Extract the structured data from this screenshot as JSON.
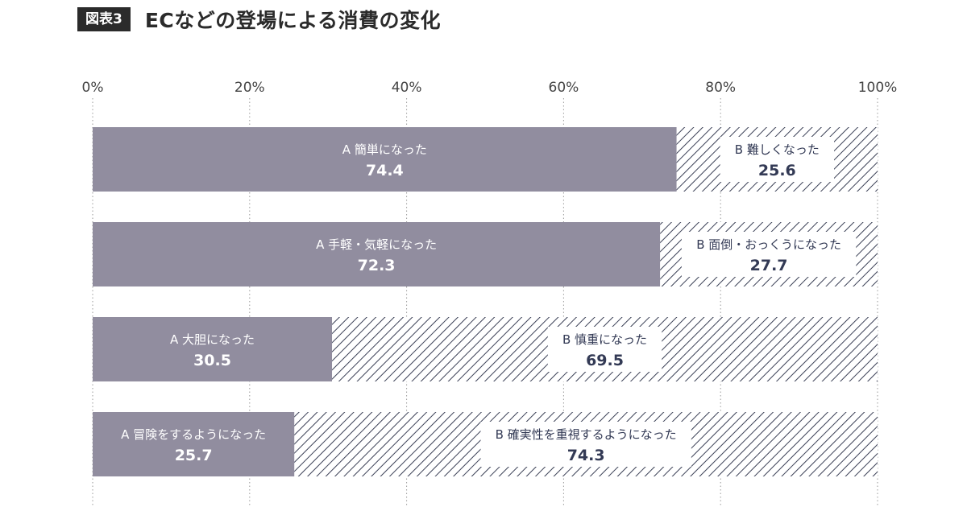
{
  "figure_label": "図表3",
  "title": "ECなどの登場による消費の変化",
  "colors": {
    "a_fill": "#918d9f",
    "b_hatch": "#3a3f55",
    "text_dark": "#333a55",
    "grid": "#9a9a9a"
  },
  "chart_data": {
    "type": "bar",
    "orientation": "horizontal",
    "stacked": true,
    "xlim": [
      0,
      100
    ],
    "xticks": [
      "0%",
      "20%",
      "40%",
      "60%",
      "80%",
      "100%"
    ],
    "grid": "dotted vertical",
    "rows": [
      {
        "a_label": "A 簡単になった",
        "a_value": 74.4,
        "b_label": "B 難しくなった",
        "b_value": 25.6
      },
      {
        "a_label": "A 手軽・気軽になった",
        "a_value": 72.3,
        "b_label": "B 面倒・おっくうになった",
        "b_value": 27.7
      },
      {
        "a_label": "A 大胆になった",
        "a_value": 30.5,
        "b_label": "B 慎重になった",
        "b_value": 69.5
      },
      {
        "a_label": "A 冒険をするようになった",
        "a_value": 25.7,
        "b_label": "B 確実性を重視するようになった",
        "b_value": 74.3
      }
    ]
  }
}
